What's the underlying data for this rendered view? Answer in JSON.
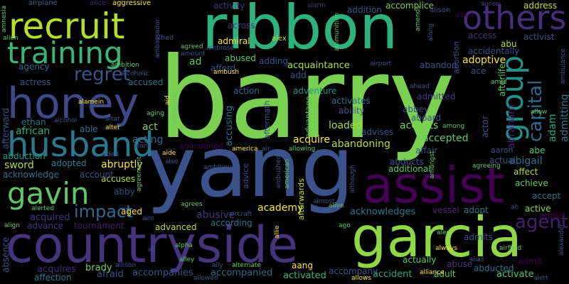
{
  "wordcloud": {
    "words": [
      {
        "text": "barry",
        "color": "#7ad151"
      },
      {
        "text": "yang",
        "color": "#3b528b"
      },
      {
        "text": "ribbon",
        "color": "#2db27d"
      },
      {
        "text": "garcia",
        "color": "#8fd744"
      },
      {
        "text": "countryside",
        "color": "#46337e"
      },
      {
        "text": "recruit",
        "color": "#b5de2b"
      },
      {
        "text": "honey",
        "color": "#3e4989"
      },
      {
        "text": "assist",
        "color": "#440154"
      },
      {
        "text": "husband",
        "color": "#2a788e"
      },
      {
        "text": "training",
        "color": "#35b779"
      },
      {
        "text": "others",
        "color": "#472d7b"
      },
      {
        "text": "gavin",
        "color": "#5ec962"
      },
      {
        "text": "regret",
        "color": "#3b528b"
      },
      {
        "text": "group",
        "color": "#21918c"
      },
      {
        "text": "impact",
        "color": "#31688e"
      },
      {
        "text": "capital",
        "color": "#31688e"
      },
      {
        "text": "abraham",
        "color": "#481f70"
      },
      {
        "text": "adam",
        "color": "#22a884"
      },
      {
        "text": "admitting",
        "color": "#2a788e"
      },
      {
        "text": "african",
        "color": "#29af7f"
      },
      {
        "text": "adventure",
        "color": "#21918c"
      },
      {
        "text": "accusing",
        "color": "#2c728e"
      },
      {
        "text": "acquire",
        "color": "#fde725"
      },
      {
        "text": "accepted",
        "color": "#5ec962"
      },
      {
        "text": "abandoning",
        "color": "#bddf26"
      },
      {
        "text": "abigail",
        "color": "#2c728e"
      },
      {
        "text": "affect",
        "color": "#b5de2b"
      },
      {
        "text": "achieve",
        "color": "#5ec962"
      },
      {
        "text": "accept",
        "color": "#2c728e"
      },
      {
        "text": "active",
        "color": "#8fd744"
      },
      {
        "text": "agent",
        "color": "#481f70"
      },
      {
        "text": "admit",
        "color": "#440154"
      },
      {
        "text": "activate",
        "color": "#52c569"
      },
      {
        "text": "abducted",
        "color": "#2c728e"
      },
      {
        "text": "accident",
        "color": "#22a884"
      },
      {
        "text": "adult",
        "color": "#5ec962"
      },
      {
        "text": "abuse",
        "color": "#46337e"
      },
      {
        "text": "activated",
        "color": "#35b779"
      },
      {
        "text": "accompanied",
        "color": "#31688e"
      },
      {
        "text": "accompanies",
        "color": "#3b528b"
      },
      {
        "text": "afraid",
        "color": "#3b528b"
      },
      {
        "text": "brady",
        "color": "#7ad151"
      },
      {
        "text": "acquires",
        "color": "#482878"
      },
      {
        "text": "affection",
        "color": "#2a788e"
      },
      {
        "text": "advanced",
        "color": "#bddf26"
      },
      {
        "text": "abusive",
        "color": "#46337e"
      },
      {
        "text": "according",
        "color": "#2c728e"
      },
      {
        "text": "academy",
        "color": "#fde725"
      },
      {
        "text": "advance",
        "color": "#443983"
      },
      {
        "text": "tournament",
        "color": "#481f70"
      },
      {
        "text": "acquired",
        "color": "#46337e"
      },
      {
        "text": "acknowledges",
        "color": "#2a788e"
      },
      {
        "text": "vessel",
        "color": "#482878"
      },
      {
        "text": "adopt",
        "color": "#2a788e"
      },
      {
        "text": "accuses",
        "color": "#bddf26"
      },
      {
        "text": "abby",
        "color": "#3e4989"
      },
      {
        "text": "abruptly",
        "color": "#fde725"
      },
      {
        "text": "adopted",
        "color": "#26828e"
      },
      {
        "text": "account",
        "color": "#3b528b"
      },
      {
        "text": "acknowledge",
        "color": "#2c728e"
      },
      {
        "text": "sword",
        "color": "#b5de2b"
      },
      {
        "text": "abduction",
        "color": "#1fa088"
      },
      {
        "text": "act",
        "color": "#7ad151"
      },
      {
        "text": "able",
        "color": "#2c728e"
      },
      {
        "text": "acting",
        "color": "#31688e"
      },
      {
        "text": "accepts",
        "color": "#7ad151"
      },
      {
        "text": "advises",
        "color": "#3b528b"
      },
      {
        "text": "loaded",
        "color": "#addc30"
      },
      {
        "text": "abbey",
        "color": "#3e4989"
      },
      {
        "text": "ability",
        "color": "#3b528b"
      },
      {
        "text": "activates",
        "color": "#2c728e"
      },
      {
        "text": "admitted",
        "color": "#46337e"
      },
      {
        "text": "accused",
        "color": "#2c728e"
      },
      {
        "text": "actress",
        "color": "#3b528b"
      },
      {
        "text": "agency",
        "color": "#31688e"
      },
      {
        "text": "ethan",
        "color": "#2c728e"
      },
      {
        "text": "action",
        "color": "#31688e"
      },
      {
        "text": "acquaintance",
        "color": "#b5de2b"
      },
      {
        "text": "abandon",
        "color": "#3b528b"
      },
      {
        "text": "adoptive",
        "color": "#fde725"
      },
      {
        "text": "accidentally",
        "color": "#3e4989"
      },
      {
        "text": "activist",
        "color": "#3b528b"
      },
      {
        "text": "abu",
        "color": "#b5de2b"
      },
      {
        "text": "access",
        "color": "#46337e"
      },
      {
        "text": "address",
        "color": "#bddf26"
      },
      {
        "text": "accomplice",
        "color": "#7ad151"
      },
      {
        "text": "addition",
        "color": "#3b528b"
      },
      {
        "text": "activity",
        "color": "#46337e"
      },
      {
        "text": "aggressive",
        "color": "#fde725"
      },
      {
        "text": "airplane",
        "color": "#31688e"
      },
      {
        "text": "alice",
        "color": "#482878"
      },
      {
        "text": "alarm",
        "color": "#46337e"
      },
      {
        "text": "albert",
        "color": "#440154"
      },
      {
        "text": "alison",
        "color": "#3b528b"
      },
      {
        "text": "agree",
        "color": "#433e85"
      },
      {
        "text": "admiral",
        "color": "#fde725"
      },
      {
        "text": "alex",
        "color": "#bddf26"
      },
      {
        "text": "across",
        "color": "#46337e"
      },
      {
        "text": "abused",
        "color": "#5ec962"
      },
      {
        "text": "afford",
        "color": "#3b528b"
      },
      {
        "text": "adding",
        "color": "#3b528b"
      },
      {
        "text": "ad",
        "color": "#5ec962"
      },
      {
        "text": "ace",
        "color": "#3b528b"
      },
      {
        "text": "add",
        "color": "#3b528b"
      },
      {
        "text": "abandoned",
        "color": "#440154"
      },
      {
        "text": "affair",
        "color": "#3b528b"
      },
      {
        "text": "aaron",
        "color": "#3b528b"
      },
      {
        "text": "abe",
        "color": "#5ec962"
      },
      {
        "text": "actual",
        "color": "#3b528b"
      },
      {
        "text": "actor",
        "color": "#3b528b"
      },
      {
        "text": "abducts",
        "color": "#3b528b"
      },
      {
        "text": "additional",
        "color": "#5ec962"
      },
      {
        "text": "advice",
        "color": "#3b528b"
      },
      {
        "text": "afterlife",
        "color": "#5ec962"
      },
      {
        "text": "aboard",
        "color": "#3b528b"
      },
      {
        "text": "allow",
        "color": "#5ec962"
      },
      {
        "text": "ahead",
        "color": "#3b528b"
      },
      {
        "text": "among",
        "color": "#5ec962"
      },
      {
        "text": "aftermath",
        "color": "#3b528b"
      },
      {
        "text": "advantage",
        "color": "#5ec962"
      },
      {
        "text": "afterward",
        "color": "#3b528b"
      },
      {
        "text": "afterwards",
        "color": "#bddf26"
      },
      {
        "text": "alamein",
        "color": "#fde725"
      },
      {
        "text": "alcohol",
        "color": "#3b528b"
      },
      {
        "text": "altar",
        "color": "#3b528b"
      },
      {
        "text": "alter",
        "color": "#fde725"
      },
      {
        "text": "aging",
        "color": "#5ec962"
      },
      {
        "text": "alcoholic",
        "color": "#3b528b"
      },
      {
        "text": "ambition",
        "color": "#5ec962"
      },
      {
        "text": "ambush",
        "color": "#fde725"
      },
      {
        "text": "amount",
        "color": "#3b528b"
      },
      {
        "text": "agreed",
        "color": "#5ec962"
      },
      {
        "text": "alfred",
        "color": "#3b528b"
      },
      {
        "text": "alien",
        "color": "#5ec962"
      },
      {
        "text": "aid",
        "color": "#fde725"
      },
      {
        "text": "alongside",
        "color": "#5ec962"
      },
      {
        "text": "aided",
        "color": "#3b528b"
      },
      {
        "text": "aide",
        "color": "#fde725"
      },
      {
        "text": "also",
        "color": "#3b528b"
      },
      {
        "text": "america",
        "color": "#fde725"
      },
      {
        "text": "air",
        "color": "#3b528b"
      },
      {
        "text": "allowing",
        "color": "#5ec962"
      },
      {
        "text": "alone",
        "color": "#3b528b"
      },
      {
        "text": "ambitious",
        "color": "#3b528b"
      },
      {
        "text": "agreement",
        "color": "#5ec962"
      },
      {
        "text": "ambushed",
        "color": "#3b528b"
      },
      {
        "text": "american",
        "color": "#5ec962"
      },
      {
        "text": "although",
        "color": "#3b528b"
      },
      {
        "text": "amongst",
        "color": "#5ec962"
      },
      {
        "text": "agreeing",
        "color": "#5ec962"
      },
      {
        "text": "airport",
        "color": "#3b528b"
      },
      {
        "text": "ammunition",
        "color": "#5ec962"
      },
      {
        "text": "along",
        "color": "#3b528b"
      },
      {
        "text": "abortion",
        "color": "#3b528b"
      },
      {
        "text": "amid",
        "color": "#5ec962"
      },
      {
        "text": "ambulance",
        "color": "#3b528b"
      },
      {
        "text": "amnesia",
        "color": "#5ec962"
      },
      {
        "text": "ambassador",
        "color": "#3b528b"
      },
      {
        "text": "amends",
        "color": "#5ec962"
      },
      {
        "text": "ambrose",
        "color": "#3b528b"
      },
      {
        "text": "alerted",
        "color": "#5ec962"
      },
      {
        "text": "aged",
        "color": "#fde725"
      },
      {
        "text": "agrees",
        "color": "#5ec962"
      },
      {
        "text": "aim",
        "color": "#3b528b"
      },
      {
        "text": "aircraft",
        "color": "#3b528b"
      },
      {
        "text": "alive",
        "color": "#5ec962"
      },
      {
        "text": "almost",
        "color": "#3b528b"
      },
      {
        "text": "ago",
        "color": "#5ec962"
      },
      {
        "text": "alliance",
        "color": "#fde725"
      },
      {
        "text": "alias",
        "color": "#3b528b"
      },
      {
        "text": "always",
        "color": "#fde725"
      },
      {
        "text": "alec",
        "color": "#5ec962"
      },
      {
        "text": "admits",
        "color": "#3b528b"
      },
      {
        "text": "airfield",
        "color": "#5ec962"
      },
      {
        "text": "alert",
        "color": "#3b528b"
      },
      {
        "text": "alexander",
        "color": "#3b528b"
      },
      {
        "text": "addict",
        "color": "#440154"
      },
      {
        "text": "ah",
        "color": "#3b528b"
      },
      {
        "text": "actually",
        "color": "#5ec962"
      },
      {
        "text": "accompany",
        "color": "#3b528b"
      },
      {
        "text": "aang",
        "color": "#fde725"
      },
      {
        "text": "allowed",
        "color": "#3b528b"
      },
      {
        "text": "allows",
        "color": "#fde725"
      },
      {
        "text": "alley",
        "color": "#5ec962"
      },
      {
        "text": "ally",
        "color": "#3b528b"
      },
      {
        "text": "alternate",
        "color": "#5ec962"
      },
      {
        "text": "alpha",
        "color": "#5ec962"
      },
      {
        "text": "ali",
        "color": "#3b528b"
      },
      {
        "text": "allie",
        "color": "#fde725"
      },
      {
        "text": "allison",
        "color": "#3b528b"
      },
      {
        "text": "align",
        "color": "#5ec962"
      },
      {
        "text": "absence",
        "color": "#3b528b"
      }
    ]
  }
}
